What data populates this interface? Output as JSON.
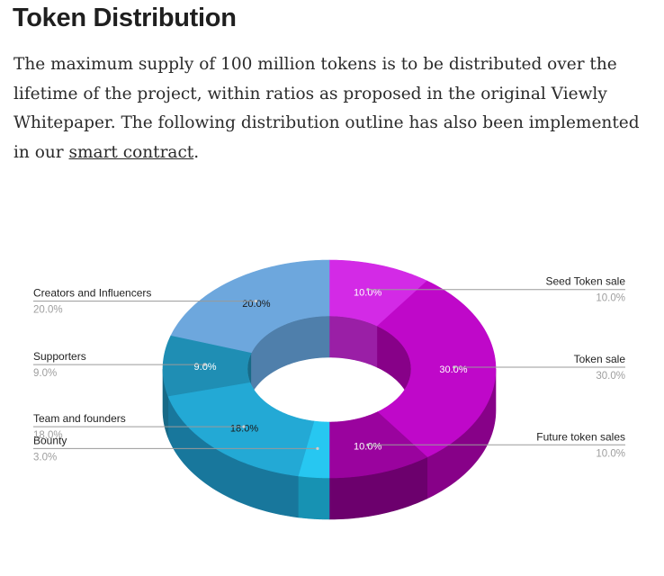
{
  "article": {
    "title": "Token Distribution",
    "para_before_link": "The maximum supply of 100 million tokens is to be distributed over the lifetime of the project, within ratios as proposed in the original Viewly Whitepaper. The following distribution outline has also been implemented in our ",
    "link_text": "smart contract",
    "para_after_link": "."
  },
  "chart_data": {
    "type": "pie",
    "style": "3d-donut",
    "title": "",
    "categories": [
      "Seed Token sale",
      "Token sale",
      "Future token sales",
      "Bounty",
      "Team and founders",
      "Supporters",
      "Creators and Influencers"
    ],
    "values": [
      10.0,
      30.0,
      10.0,
      3.0,
      18.0,
      9.0,
      20.0
    ],
    "slice_labels": [
      "10.0%",
      "30.0%",
      "10.0%",
      "",
      "18.0%",
      "9.0%",
      "20.0%"
    ],
    "legend_values": [
      "10.0%",
      "30.0%",
      "10.0%",
      "3.0%",
      "18.0%",
      "9.0%",
      "20.0%"
    ],
    "colors": [
      "#d32ae6",
      "#bf08c9",
      "#9a039e",
      "#27c7f1",
      "#23a9d5",
      "#1f8eb4",
      "#6da7dd"
    ],
    "side_colors": [
      "#9a1fa6",
      "#870188",
      "#6c006d",
      "#1792b3",
      "#18779c",
      "#186a87",
      "#4f7fab"
    ],
    "label_text_color": "#222222",
    "value_text_color": "#9e9e9e",
    "legend": "callouts"
  }
}
